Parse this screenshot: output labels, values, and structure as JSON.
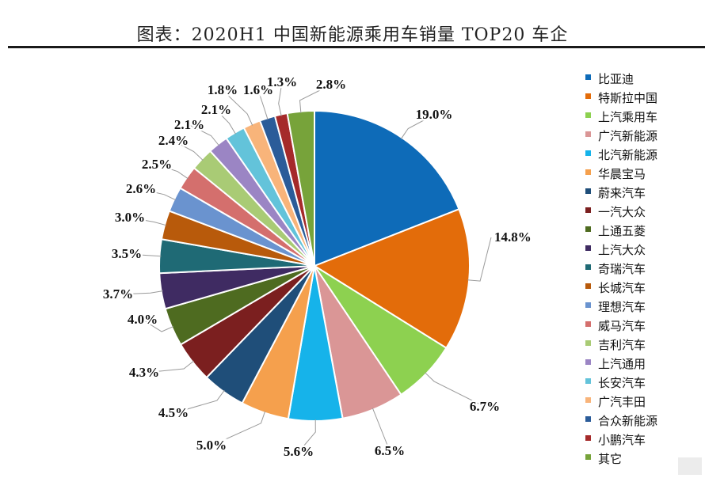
{
  "title": "图表：2020H1 中国新能源乘用车销量 TOP20 车企",
  "chart_data": {
    "type": "pie",
    "title": "图表：2020H1 中国新能源乘用车销量 TOP20 车企",
    "legend_position": "right",
    "slices": [
      {
        "name": "比亚迪",
        "value": 19.0,
        "label": "19.0%",
        "color": "#0E6BB8"
      },
      {
        "name": "特斯拉中国",
        "value": 14.8,
        "label": "14.8%",
        "color": "#E36C0A"
      },
      {
        "name": "上汽乘用车",
        "value": 6.7,
        "label": "6.7%",
        "color": "#8DD150"
      },
      {
        "name": "广汽新能源",
        "value": 6.5,
        "label": "6.5%",
        "color": "#DA9696"
      },
      {
        "name": "北汽新能源",
        "value": 5.6,
        "label": "5.6%",
        "color": "#16B3EA"
      },
      {
        "name": "华晨宝马",
        "value": 5.0,
        "label": "5.0%",
        "color": "#F5A04D"
      },
      {
        "name": "蔚来汽车",
        "value": 4.5,
        "label": "4.5%",
        "color": "#1F4E79"
      },
      {
        "name": "一汽大众",
        "value": 4.3,
        "label": "4.3%",
        "color": "#7B1F1F"
      },
      {
        "name": "上通五菱",
        "value": 4.0,
        "label": "4.0%",
        "color": "#4E6B20"
      },
      {
        "name": "上汽大众",
        "value": 3.7,
        "label": "3.7%",
        "color": "#3F2B62"
      },
      {
        "name": "奇瑞汽车",
        "value": 3.5,
        "label": "3.5%",
        "color": "#1F6A75"
      },
      {
        "name": "长城汽车",
        "value": 3.0,
        "label": "3.0%",
        "color": "#B85A0B"
      },
      {
        "name": "理想汽车",
        "value": 2.6,
        "label": "2.6%",
        "color": "#6A93CF"
      },
      {
        "name": "威马汽车",
        "value": 2.5,
        "label": "2.5%",
        "color": "#D46F6D"
      },
      {
        "name": "吉利汽车",
        "value": 2.4,
        "label": "2.4%",
        "color": "#A9CB75"
      },
      {
        "name": "上汽通用",
        "value": 2.1,
        "label": "2.1%",
        "color": "#9B85C4"
      },
      {
        "name": "长安汽车",
        "value": 2.1,
        "label": "2.1%",
        "color": "#63C3DA"
      },
      {
        "name": "广汽丰田",
        "value": 1.8,
        "label": "1.8%",
        "color": "#F8B47A"
      },
      {
        "name": "合众新能源",
        "value": 1.6,
        "label": "1.6%",
        "color": "#2B5C99"
      },
      {
        "name": "小鹏汽车",
        "value": 1.3,
        "label": "1.3%",
        "color": "#A52A2A"
      },
      {
        "name": "其它",
        "value": 2.8,
        "label": "2.8%",
        "color": "#77A33A"
      }
    ]
  }
}
